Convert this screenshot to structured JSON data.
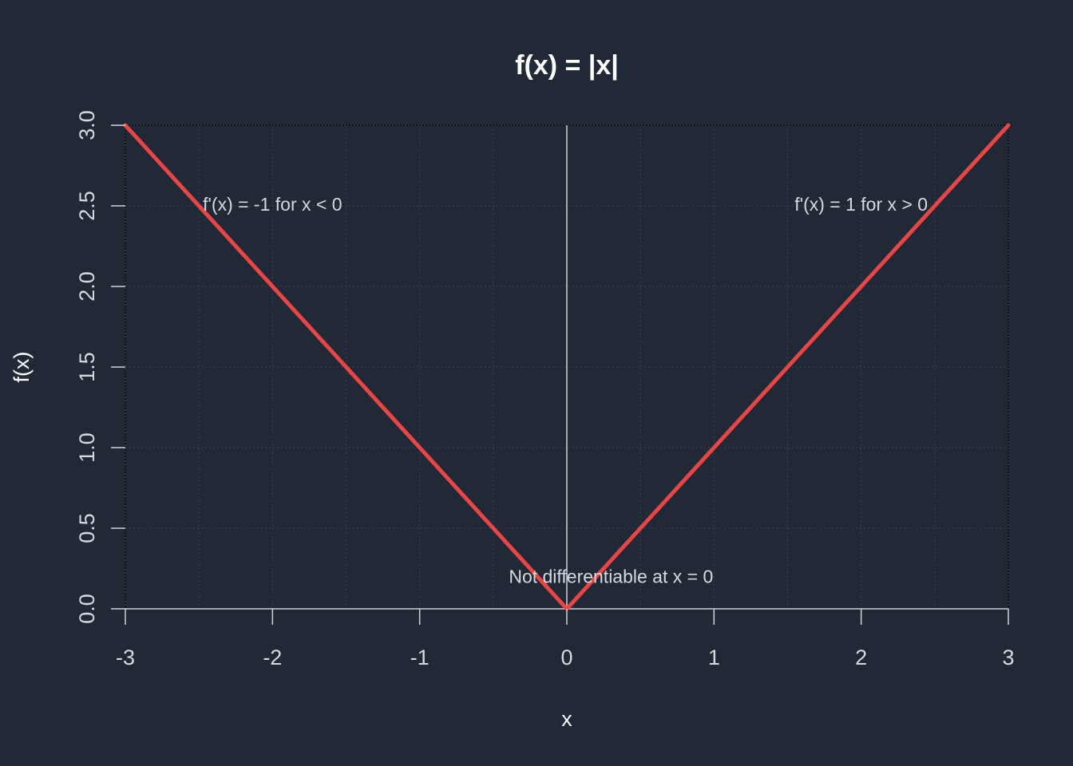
{
  "chart_data": {
    "type": "line",
    "title": "f(x) = |x|",
    "xlabel": "x",
    "ylabel": "f(x)",
    "xlim": [
      -3,
      3
    ],
    "ylim": [
      0,
      3
    ],
    "x_ticks": [
      {
        "value": -3,
        "label": "-3"
      },
      {
        "value": -2,
        "label": "-2"
      },
      {
        "value": -1,
        "label": "-1"
      },
      {
        "value": 0,
        "label": "0"
      },
      {
        "value": 1,
        "label": "1"
      },
      {
        "value": 2,
        "label": "2"
      },
      {
        "value": 3,
        "label": "3"
      }
    ],
    "y_ticks": [
      {
        "value": 0,
        "label": "0.0"
      },
      {
        "value": 0.5,
        "label": "0.5"
      },
      {
        "value": 1,
        "label": "1.0"
      },
      {
        "value": 1.5,
        "label": "1.5"
      },
      {
        "value": 2,
        "label": "2.0"
      },
      {
        "value": 2.5,
        "label": "2.5"
      },
      {
        "value": 3,
        "label": "3.0"
      }
    ],
    "grid": true,
    "grid_x_minor": [
      -2.5,
      -1.5,
      -0.5,
      0.5,
      1.5,
      2.5
    ],
    "series": [
      {
        "x": [
          -3,
          -2.5,
          -2,
          -1.5,
          -1,
          -0.5,
          0,
          0.5,
          1,
          1.5,
          2,
          2.5,
          3
        ],
        "y": [
          3,
          2.5,
          2,
          1.5,
          1,
          0.5,
          0,
          0.5,
          1,
          1.5,
          2,
          2.5,
          3
        ],
        "color": "#e84545"
      }
    ],
    "reference_lines": [
      {
        "orientation": "vertical",
        "value": 0
      },
      {
        "orientation": "horizontal",
        "value": 0
      }
    ],
    "annotations": [
      {
        "text": "f'(x) = -1 for x < 0",
        "x": -2,
        "y": 2.5
      },
      {
        "text": "f'(x) = 1 for x > 0",
        "x": 2,
        "y": 2.5
      },
      {
        "text": "Not differentiable at x = 0",
        "x": 0.3,
        "y": 0.19
      }
    ],
    "colors": {
      "background": "#212937",
      "line": "#e84545",
      "text": "#ffffff",
      "tick_text": "#d6d9de",
      "grid": "#3a4252",
      "reference": "#cfd3da"
    }
  }
}
